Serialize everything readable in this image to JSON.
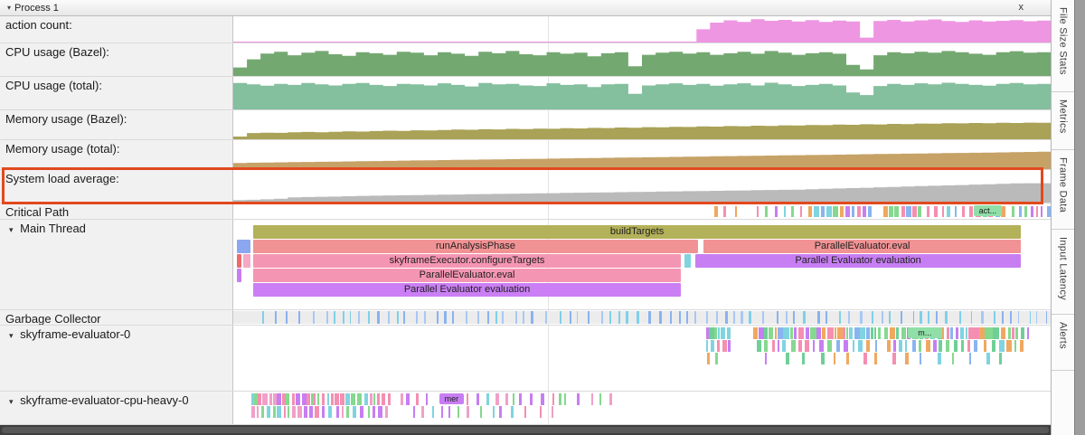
{
  "header": {
    "title": "Process 1",
    "close": "x"
  },
  "icons": {
    "collapse": "▾"
  },
  "highlight_color": "#e1491f",
  "seed": 11,
  "counters": [
    {
      "label": "action count:",
      "color": "#ee96e2",
      "scale": 0.95,
      "values": [
        0,
        0,
        0,
        0,
        0,
        0,
        0,
        0,
        0,
        0,
        0,
        0,
        0,
        0,
        0,
        0,
        0,
        0,
        0,
        0,
        0,
        0,
        0,
        0,
        0,
        0,
        0,
        0,
        0,
        0,
        0,
        0,
        0,
        0,
        0.55,
        0.85,
        0.95,
        0.88,
        1,
        0.93,
        0.97,
        0.9,
        0.96,
        0.88,
        0.94,
        0.9,
        0.18,
        0.92,
        0.97,
        0.9,
        0.95,
        0.99,
        0.92,
        0.88,
        0.95,
        0.9,
        0.93,
        0.96,
        0.91,
        0.94
      ]
    },
    {
      "label": "CPU usage (Bazel):",
      "color": "#74a871",
      "scale": 0.85,
      "values": [
        0.3,
        0.62,
        0.85,
        0.92,
        0.78,
        0.88,
        0.95,
        0.82,
        0.76,
        0.9,
        0.86,
        0.8,
        0.92,
        0.88,
        0.78,
        0.9,
        0.84,
        0.76,
        0.92,
        0.86,
        0.95,
        0.82,
        0.78,
        0.9,
        0.84,
        0.88,
        0.74,
        0.86,
        0.9,
        0.35,
        0.8,
        0.88,
        0.92,
        0.85,
        0.9,
        0.8,
        0.86,
        0.92,
        0.84,
        0.95,
        0.88,
        0.8,
        0.86,
        0.9,
        0.84,
        0.4,
        0.22,
        0.78,
        0.9,
        0.86,
        0.92,
        0.88,
        0.95,
        0.9,
        0.84,
        0.8,
        0.9,
        0.94,
        0.88,
        0.9
      ]
    },
    {
      "label": "CPU usage (total):",
      "color": "#84bf9e",
      "scale": 0.9,
      "values": [
        0.95,
        0.9,
        0.85,
        0.92,
        0.88,
        0.95,
        0.9,
        0.86,
        0.92,
        0.95,
        0.88,
        0.84,
        0.92,
        0.9,
        0.86,
        0.94,
        0.88,
        0.82,
        0.95,
        0.9,
        0.92,
        0.86,
        0.84,
        0.94,
        0.88,
        0.9,
        0.8,
        0.9,
        0.92,
        0.55,
        0.86,
        0.9,
        0.94,
        0.88,
        0.92,
        0.85,
        0.9,
        0.94,
        0.86,
        0.96,
        0.9,
        0.84,
        0.88,
        0.92,
        0.86,
        0.6,
        0.5,
        0.84,
        0.92,
        0.88,
        0.94,
        0.9,
        0.96,
        0.92,
        0.88,
        0.85,
        0.92,
        0.95,
        0.9,
        0.92
      ]
    },
    {
      "label": "Memory usage (Bazel):",
      "color": "#a9a257",
      "scale": 0.68,
      "values": [
        0.1,
        0.3,
        0.32,
        0.31,
        0.34,
        0.36,
        0.34,
        0.37,
        0.39,
        0.38,
        0.41,
        0.43,
        0.42,
        0.45,
        0.44,
        0.47,
        0.49,
        0.48,
        0.51,
        0.5,
        0.53,
        0.52,
        0.55,
        0.54,
        0.57,
        0.56,
        0.59,
        0.58,
        0.61,
        0.6,
        0.63,
        0.62,
        0.65,
        0.64,
        0.67,
        0.66,
        0.69,
        0.68,
        0.71,
        0.7,
        0.73,
        0.72,
        0.75,
        0.74,
        0.77,
        0.76,
        0.79,
        0.78,
        0.81,
        0.8,
        0.83,
        0.82,
        0.85,
        0.84,
        0.86,
        0.85,
        0.87,
        0.86,
        0.88,
        0.87
      ]
    },
    {
      "label": "Memory usage (total):",
      "color": "#c6a267",
      "scale": 0.72,
      "values": [
        0.28,
        0.29,
        0.3,
        0.31,
        0.32,
        0.33,
        0.34,
        0.35,
        0.36,
        0.37,
        0.38,
        0.39,
        0.4,
        0.41,
        0.42,
        0.43,
        0.44,
        0.45,
        0.46,
        0.47,
        0.48,
        0.49,
        0.5,
        0.51,
        0.52,
        0.53,
        0.54,
        0.55,
        0.56,
        0.57,
        0.58,
        0.59,
        0.6,
        0.61,
        0.62,
        0.63,
        0.64,
        0.65,
        0.66,
        0.67,
        0.68,
        0.69,
        0.7,
        0.71,
        0.72,
        0.73,
        0.74,
        0.75,
        0.76,
        0.77,
        0.78,
        0.79,
        0.8,
        0.81,
        0.82,
        0.83,
        0.84,
        0.85,
        0.86,
        0.87
      ]
    },
    {
      "label": "System load average:",
      "color": "#bababa",
      "scale": 0.65,
      "values": [
        0.08,
        0.1,
        0.12,
        0.15,
        0.22,
        0.24,
        0.25,
        0.26,
        0.28,
        0.3,
        0.31,
        0.32,
        0.33,
        0.34,
        0.35,
        0.36,
        0.37,
        0.38,
        0.39,
        0.4,
        0.41,
        0.42,
        0.43,
        0.44,
        0.45,
        0.46,
        0.47,
        0.48,
        0.49,
        0.5,
        0.51,
        0.52,
        0.53,
        0.54,
        0.55,
        0.56,
        0.57,
        0.58,
        0.59,
        0.6,
        0.61,
        0.62,
        0.64,
        0.66,
        0.68,
        0.7,
        0.72,
        0.74,
        0.76,
        0.78,
        0.8,
        0.82,
        0.84,
        0.86,
        0.88,
        0.9,
        0.92,
        0.94,
        0.95,
        0.95
      ]
    }
  ],
  "critical_path": {
    "label": "Critical Path",
    "chip": {
      "label": "act...",
      "x": 0.906,
      "w": 0.034,
      "color": "#90dfa8"
    },
    "first_tick": {
      "x": 0.588,
      "w": 0.005,
      "color": "#f0a860"
    },
    "palette": [
      "#8ab4f0",
      "#7fd4e0",
      "#85d98f",
      "#f48fb1",
      "#c77ef2",
      "#f0a860"
    ],
    "clusters": [
      {
        "from": 0.6,
        "to": 0.626,
        "bw": [
          2,
          3
        ],
        "gap": [
          6,
          12
        ]
      },
      {
        "from": 0.64,
        "to": 0.7,
        "bw": [
          2,
          4
        ],
        "gap": [
          4,
          9
        ]
      },
      {
        "from": 0.703,
        "to": 0.78,
        "bw": [
          3,
          6
        ],
        "gap": [
          1,
          3
        ]
      },
      {
        "from": 0.795,
        "to": 0.84,
        "bw": [
          3,
          6
        ],
        "gap": [
          1,
          3
        ]
      },
      {
        "from": 0.848,
        "to": 0.896,
        "bw": [
          2,
          4
        ],
        "gap": [
          3,
          7
        ]
      },
      {
        "from": 0.9,
        "to": 0.945,
        "bw": [
          3,
          6
        ],
        "gap": [
          1,
          3
        ]
      },
      {
        "from": 0.952,
        "to": 0.998,
        "bw": [
          2,
          4
        ],
        "gap": [
          2,
          5
        ]
      }
    ]
  },
  "main_thread": {
    "label": "Main Thread",
    "bars": [
      {
        "row": 0,
        "x": 0.024,
        "w": 0.94,
        "color": "#b3b159",
        "label": "buildTargets"
      },
      {
        "row": 1,
        "x": 0.004,
        "w": 0.017,
        "color": "#8aa7f0",
        "label": ""
      },
      {
        "row": 1,
        "x": 0.024,
        "w": 0.545,
        "color": "#f19394",
        "label": "runAnalysisPhase"
      },
      {
        "row": 1,
        "x": 0.575,
        "w": 0.389,
        "color": "#f19394",
        "label": "ParallelEvaluator.eval"
      },
      {
        "row": 2,
        "x": 0.004,
        "w": 0.006,
        "color": "#ec6c6c",
        "label": ""
      },
      {
        "row": 2,
        "x": 0.012,
        "w": 0.009,
        "color": "#f6a8c4",
        "label": ""
      },
      {
        "row": 2,
        "x": 0.024,
        "w": 0.524,
        "color": "#f595b4",
        "label": "skyframeExecutor.configureTargets"
      },
      {
        "row": 2,
        "x": 0.552,
        "w": 0.008,
        "color": "#7fd4e0",
        "label": ""
      },
      {
        "row": 2,
        "x": 0.565,
        "w": 0.399,
        "color": "#c77ef2",
        "label": "Parallel Evaluator evaluation"
      },
      {
        "row": 3,
        "x": 0.004,
        "w": 0.006,
        "color": "#c77ef2",
        "label": ""
      },
      {
        "row": 3,
        "x": 0.024,
        "w": 0.524,
        "color": "#f595b4",
        "label": "ParallelEvaluator.eval"
      },
      {
        "row": 4,
        "x": 0.024,
        "w": 0.524,
        "color": "#cb7ff4",
        "label": "Parallel Evaluator evaluation"
      }
    ]
  },
  "gc": {
    "label": "Garbage Collector",
    "palette": [
      "#8ab2ee",
      "#7fd0e8",
      "#a8c8f4"
    ],
    "clusters": [
      {
        "from": 0.035,
        "to": 0.995,
        "bw": [
          1.5,
          3
        ],
        "gap": [
          5,
          14
        ]
      }
    ]
  },
  "sky0": {
    "label": "skyframe-evaluator-0",
    "chip": {
      "label": "m...",
      "x": 0.825,
      "w": 0.042,
      "color": "#90dfa8"
    },
    "palette": [
      "#85d98f",
      "#f48fb1",
      "#7fd4e0",
      "#c77ef2",
      "#f0a860",
      "#8ab4f0",
      "#6fcf97"
    ],
    "rows": [
      {
        "clusters": [
          {
            "from": 0.578,
            "to": 0.607,
            "bw": [
              2,
              6
            ],
            "gap": [
              0,
              2
            ]
          },
          {
            "from": 0.636,
            "to": 0.79,
            "bw": [
              2,
              7
            ],
            "gap": [
              0,
              2
            ]
          },
          {
            "from": 0.796,
            "to": 0.975,
            "bw": [
              2,
              7
            ],
            "gap": [
              0,
              3
            ]
          }
        ]
      },
      {
        "clusters": [
          {
            "from": 0.578,
            "to": 0.607,
            "bw": [
              2,
              5
            ],
            "gap": [
              1,
              4
            ]
          },
          {
            "from": 0.64,
            "to": 0.79,
            "bw": [
              2,
              6
            ],
            "gap": [
              2,
              6
            ]
          },
          {
            "from": 0.8,
            "to": 0.965,
            "bw": [
              2,
              6
            ],
            "gap": [
              2,
              7
            ]
          }
        ]
      },
      {
        "clusters": [
          {
            "from": 0.58,
            "to": 0.6,
            "bw": [
              2,
              3
            ],
            "gap": [
              3,
              8
            ]
          },
          {
            "from": 0.65,
            "to": 0.955,
            "bw": [
              2,
              4
            ],
            "gap": [
              8,
              22
            ]
          }
        ]
      }
    ]
  },
  "cpu_heavy": {
    "label": "skyframe-evaluator-cpu-heavy-0",
    "chip": {
      "label": "mer",
      "x": 0.252,
      "w": 0.03,
      "color": "#c77ef2"
    },
    "palette": [
      "#f48fb1",
      "#7fd4e0",
      "#c77ef2",
      "#85d98f",
      "#f0a0c8"
    ],
    "rows": [
      {
        "clusters": [
          {
            "from": 0.022,
            "to": 0.095,
            "bw": [
              2,
              6
            ],
            "gap": [
              0,
              2
            ]
          },
          {
            "from": 0.098,
            "to": 0.19,
            "bw": [
              2,
              5
            ],
            "gap": [
              1,
              3
            ]
          },
          {
            "from": 0.205,
            "to": 0.245,
            "bw": [
              2,
              4
            ],
            "gap": [
              3,
              8
            ]
          },
          {
            "from": 0.285,
            "to": 0.4,
            "bw": [
              2,
              4
            ],
            "gap": [
              4,
              10
            ]
          },
          {
            "from": 0.405,
            "to": 0.475,
            "bw": [
              2,
              3
            ],
            "gap": [
              6,
              14
            ]
          }
        ]
      },
      {
        "clusters": [
          {
            "from": 0.022,
            "to": 0.095,
            "bw": [
              2,
              5
            ],
            "gap": [
              1,
              3
            ]
          },
          {
            "from": 0.1,
            "to": 0.19,
            "bw": [
              2,
              5
            ],
            "gap": [
              2,
              5
            ]
          },
          {
            "from": 0.22,
            "to": 0.33,
            "bw": [
              2,
              3
            ],
            "gap": [
              5,
              12
            ]
          },
          {
            "from": 0.34,
            "to": 0.4,
            "bw": [
              2,
              3
            ],
            "gap": [
              8,
              16
            ]
          }
        ]
      }
    ]
  },
  "sidebar": {
    "tabs": [
      {
        "label": "File Size Stats"
      },
      {
        "label": "Metrics"
      },
      {
        "label": "Frame Data"
      },
      {
        "label": "Input Latency"
      },
      {
        "label": "Alerts"
      }
    ]
  }
}
